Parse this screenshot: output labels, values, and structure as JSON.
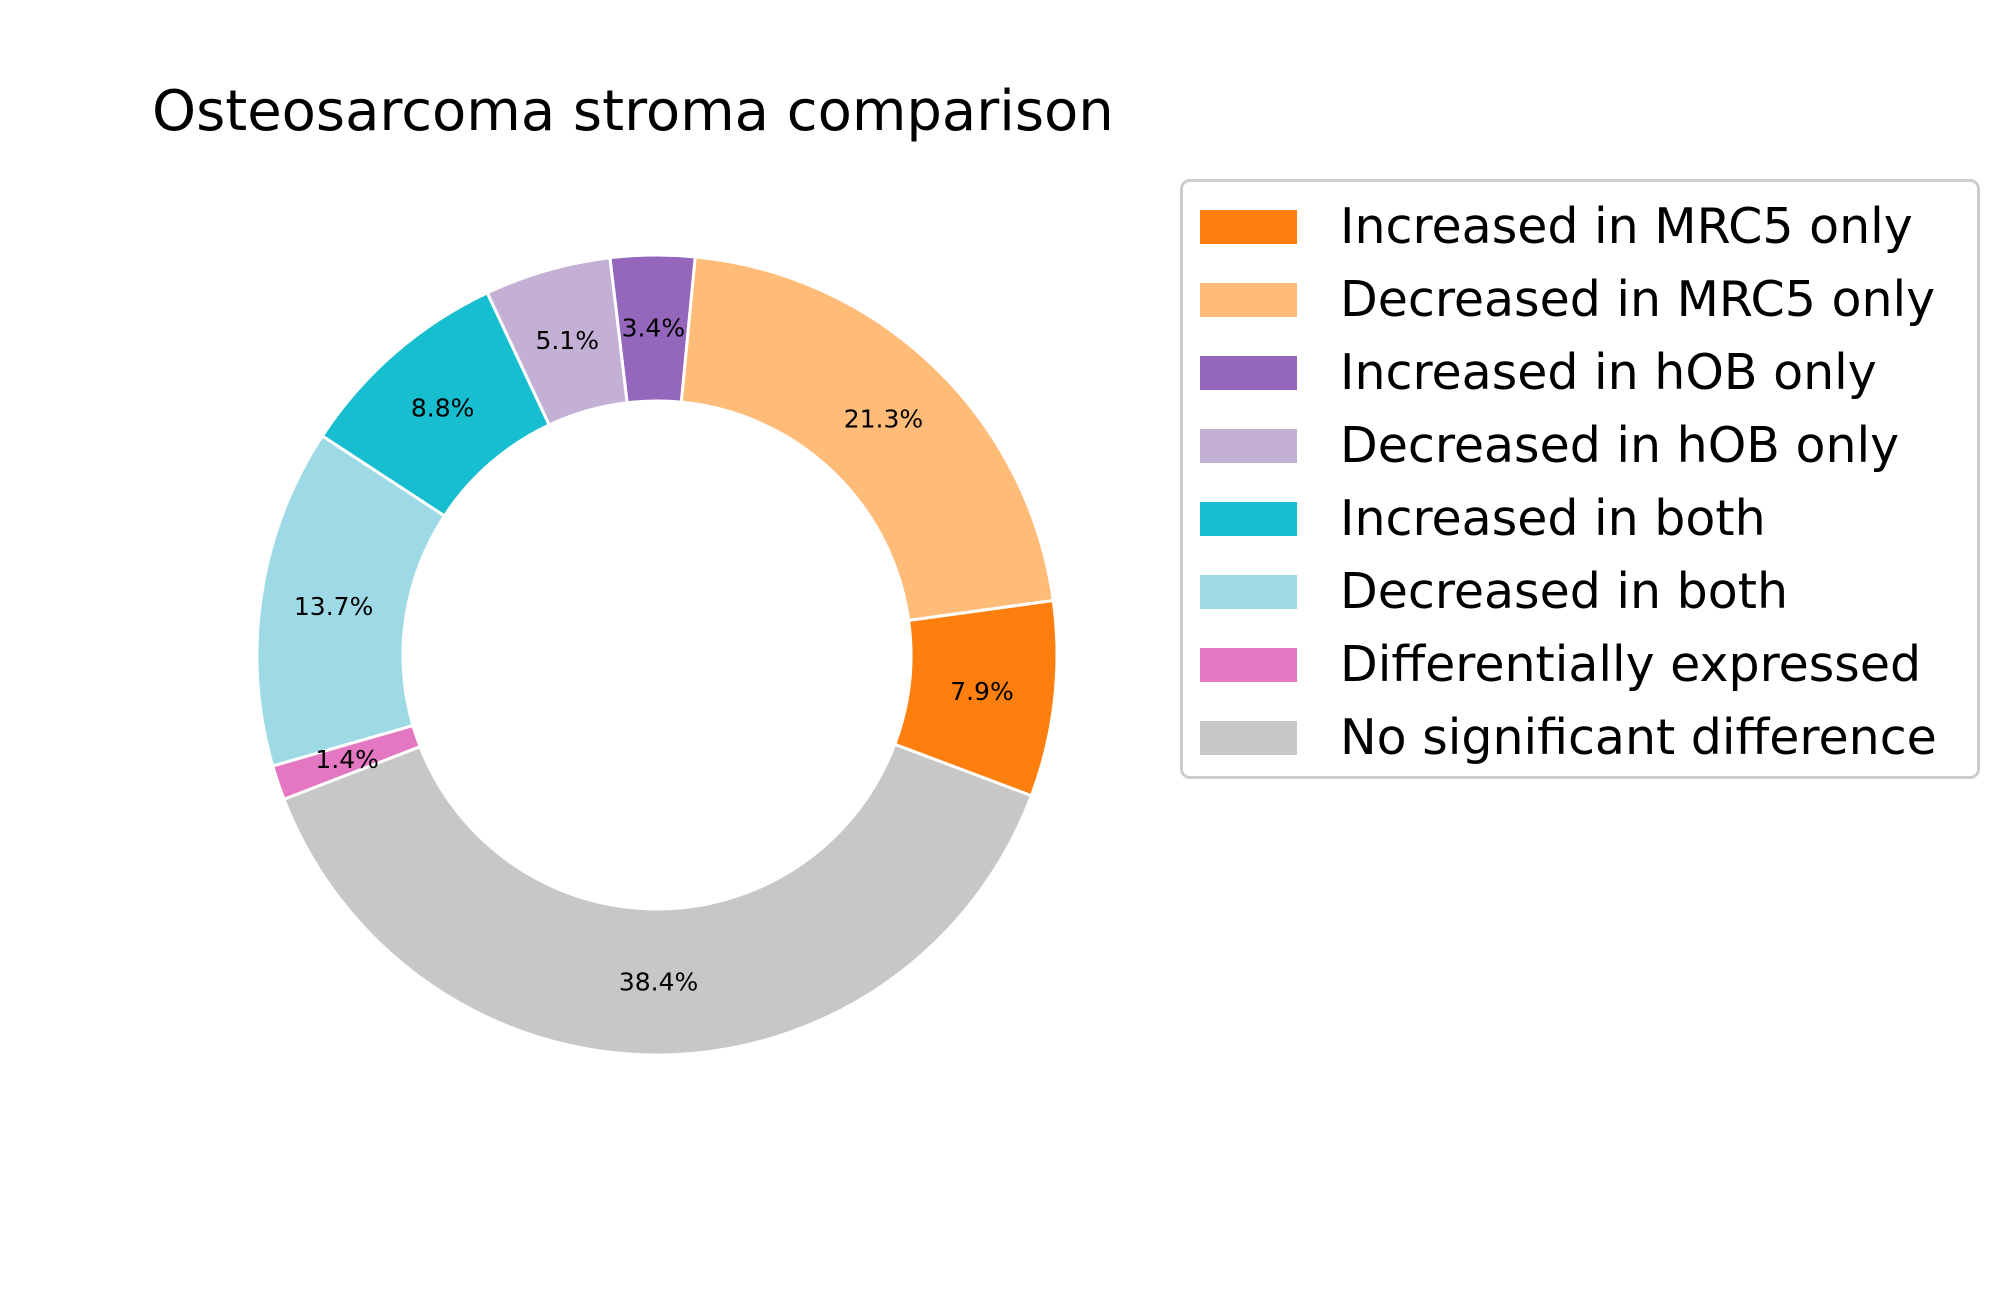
{
  "chart_data": {
    "type": "pie",
    "donut": true,
    "title": "Osteosarcoma stroma comparison",
    "slices": [
      {
        "label": "Increased in MRC5 only",
        "value": 7.9,
        "pct_label": "7.9%",
        "color": "#ff7f0e"
      },
      {
        "label": "Decreased in MRC5 only",
        "value": 21.3,
        "pct_label": "21.3%",
        "color": "#ffbb78"
      },
      {
        "label": "Increased in hOB only",
        "value": 3.4,
        "pct_label": "3.4%",
        "color": "#9467bd"
      },
      {
        "label": "Decreased in hOB only",
        "value": 5.1,
        "pct_label": "5.1%",
        "color": "#c5b0d5"
      },
      {
        "label": "Increased in both",
        "value": 8.8,
        "pct_label": "8.8%",
        "color": "#17becf"
      },
      {
        "label": "Decreased in both",
        "value": 13.7,
        "pct_label": "13.7%",
        "color": "#9edae5"
      },
      {
        "label": "Differentially expressed",
        "value": 1.4,
        "pct_label": "1.4%",
        "color": "#e377c2"
      },
      {
        "label": "No significant difference",
        "value": 38.4,
        "pct_label": "38.4%",
        "color": "#c7c7c7"
      }
    ],
    "legend_position": "right"
  }
}
